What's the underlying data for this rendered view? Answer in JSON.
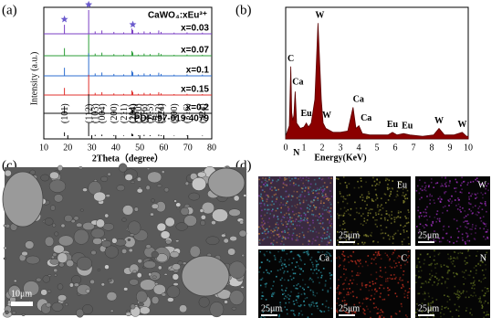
{
  "chart_data": [
    {
      "type": "stick",
      "panel_label": "(a)",
      "title": "CaWO₄:xEu³⁺",
      "x_label": "2Theta（degree）",
      "y_label": "Intensity (a.u.)",
      "xlim": [
        10,
        80
      ],
      "xticks": [
        10,
        20,
        30,
        40,
        50,
        60,
        70,
        80
      ],
      "x": [
        18.6,
        28.7,
        31.4,
        34.2,
        39.2,
        43.3,
        46.7,
        47.1,
        49.4,
        51.8,
        54.3,
        57.9,
        58.9,
        64.3,
        69.7,
        76.1
      ],
      "series": [
        {
          "name": "x=0.03",
          "color": "#7b3fc4",
          "values": [
            38,
            100,
            10,
            14,
            8,
            6,
            22,
            16,
            6,
            10,
            8,
            14,
            8,
            5,
            6,
            5
          ]
        },
        {
          "name": "x=0.07",
          "color": "#2e9e3a",
          "values": [
            32,
            90,
            9,
            13,
            7,
            5,
            20,
            14,
            5,
            9,
            7,
            12,
            7,
            4,
            5,
            4
          ]
        },
        {
          "name": "x=0.1",
          "color": "#2f6fd0",
          "values": [
            34,
            95,
            10,
            14,
            8,
            6,
            21,
            15,
            6,
            10,
            8,
            13,
            8,
            5,
            6,
            5
          ]
        },
        {
          "name": "x=0.15",
          "color": "#e0302c",
          "values": [
            30,
            85,
            9,
            12,
            7,
            5,
            19,
            13,
            5,
            9,
            7,
            12,
            7,
            4,
            5,
            4
          ]
        },
        {
          "name": "x=0.2",
          "color": "#111111",
          "values": [
            30,
            80,
            9,
            12,
            7,
            5,
            18,
            13,
            5,
            8,
            7,
            11,
            7,
            4,
            5,
            4
          ]
        }
      ],
      "reference": {
        "name": "PDF#97-019-4079",
        "color": "#111111",
        "values": [
          30,
          100,
          10,
          12,
          8,
          5,
          20,
          14,
          6,
          10,
          7,
          12,
          7,
          4,
          5,
          4
        ],
        "labels": [
          "(101)",
          "(112)",
          "(103)",
          "(004)",
          "(200)",
          "(211)",
          "(114)",
          "(204)",
          "(220)",
          "(116)",
          "(215)",
          "(312)",
          "(224)",
          "(400)",
          "(316)",
          "(424)"
        ]
      },
      "star_x": [
        18.6,
        28.7,
        47.1
      ],
      "star_color": "#6a5acd"
    },
    {
      "type": "area",
      "panel_label": "(b)",
      "x_label": "Energy(KeV)",
      "color": "#8b0000",
      "xlim": [
        0,
        10
      ],
      "xticks": [
        0,
        1,
        2,
        3,
        4,
        5,
        6,
        7,
        8,
        9,
        10
      ],
      "ylim": [
        0,
        100
      ],
      "x": [
        0,
        0.2,
        0.28,
        0.33,
        0.39,
        0.45,
        0.52,
        0.6,
        0.8,
        1.0,
        1.13,
        1.25,
        1.4,
        1.6,
        1.77,
        1.95,
        2.05,
        2.2,
        2.6,
        3.0,
        3.4,
        3.69,
        3.85,
        4.01,
        4.2,
        4.6,
        5.2,
        5.6,
        5.85,
        6.1,
        6.46,
        6.8,
        7.5,
        8.1,
        8.4,
        8.7,
        9.2,
        9.67,
        9.9,
        10
      ],
      "values": [
        2,
        10,
        55,
        20,
        14,
        18,
        36,
        12,
        8,
        9,
        12,
        9,
        12,
        30,
        88,
        30,
        12,
        8,
        5,
        5,
        6,
        24,
        8,
        10,
        4,
        3,
        3,
        3,
        5,
        3,
        4,
        3,
        2,
        3,
        8,
        3,
        3,
        5,
        2,
        2
      ],
      "peak_labels": [
        {
          "text": "C",
          "x": 0.28
        },
        {
          "text": "Ca",
          "x": 0.52
        },
        {
          "text": "N",
          "x": 0.39
        },
        {
          "text": "Eu",
          "x": 1.13
        },
        {
          "text": "W",
          "x": 1.77
        },
        {
          "text": "W",
          "x": 2.05
        },
        {
          "text": "Ca",
          "x": 3.69
        },
        {
          "text": "Ca",
          "x": 4.01
        },
        {
          "text": "Eu",
          "x": 5.85
        },
        {
          "text": "Eu",
          "x": 6.46
        },
        {
          "text": "W",
          "x": 8.4
        },
        {
          "text": "W",
          "x": 9.67
        }
      ]
    }
  ],
  "sem": {
    "panel_label": "(c)",
    "scale": "10μm"
  },
  "mapping": {
    "panel_label": "(d)",
    "tiles": [
      {
        "label": null,
        "scale": null
      },
      {
        "label": "Eu",
        "scale": "25μm"
      },
      {
        "label": "W",
        "scale": "25μm"
      },
      {
        "label": "Ca",
        "scale": "25μm"
      },
      {
        "label": "C",
        "scale": "25μm"
      },
      {
        "label": "N",
        "scale": "25μm"
      }
    ]
  }
}
